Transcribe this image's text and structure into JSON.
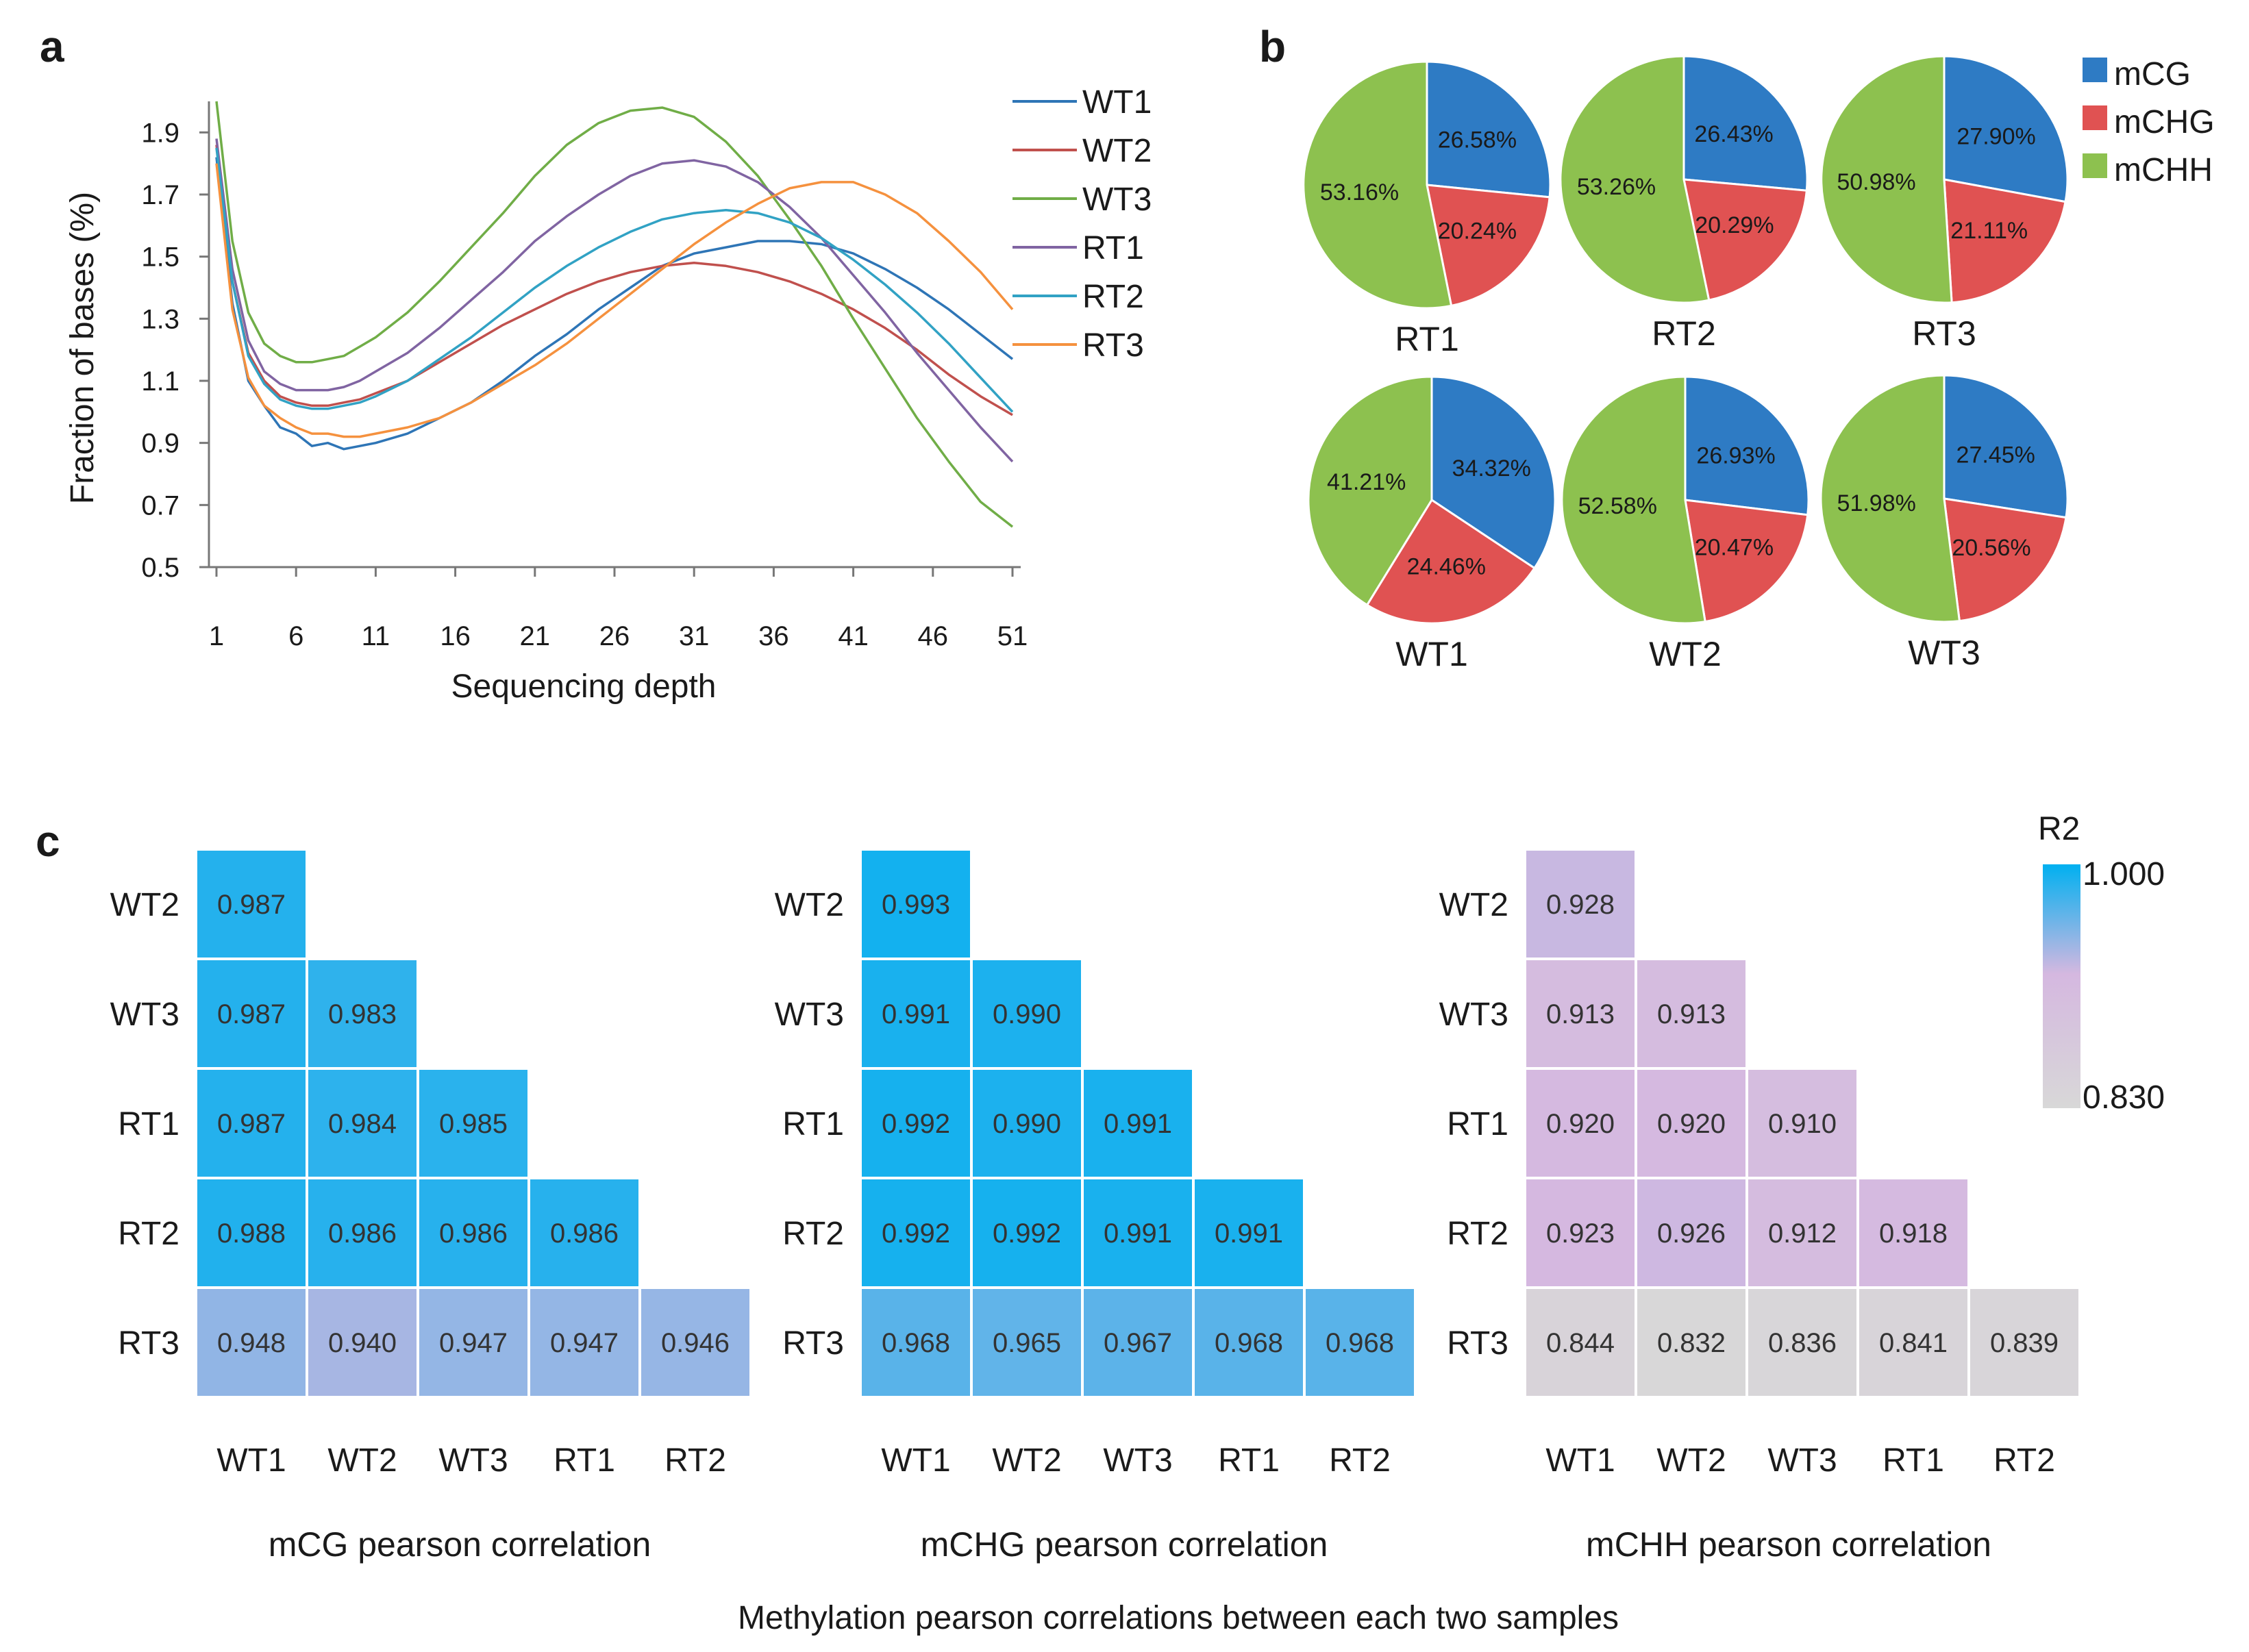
{
  "panel_labels": {
    "a": "a",
    "b": "b",
    "c": "c"
  },
  "colors": {
    "WT1": "#2e75b6",
    "WT2": "#c0504d",
    "WT3": "#70ad47",
    "RT1": "#8064a2",
    "RT2": "#31a2c4",
    "RT3": "#f5913e",
    "mCG": "#2e7bc4",
    "mCHG": "#e05252",
    "mCHH": "#8dc14f",
    "heat_high": "#00b0f0",
    "heat_mid": "#d5b8e0",
    "heat_low": "#d8d8d8"
  },
  "chart_data": [
    {
      "type": "line",
      "panel": "a",
      "xlabel": "Sequencing depth",
      "ylabel": "Fraction of bases (%)",
      "xlim": [
        1,
        51
      ],
      "ylim": [
        0.5,
        2.0
      ],
      "x_ticks": [
        "1",
        "6",
        "11",
        "16",
        "21",
        "26",
        "31",
        "36",
        "41",
        "46",
        "51"
      ],
      "y_ticks": [
        "0.5",
        "0.7",
        "0.9",
        "1.1",
        "1.3",
        "1.5",
        "1.7",
        "1.9"
      ],
      "x": [
        1,
        2,
        3,
        4,
        5,
        6,
        7,
        8,
        9,
        10,
        11,
        13,
        15,
        17,
        19,
        21,
        23,
        25,
        27,
        29,
        31,
        33,
        35,
        37,
        39,
        41,
        43,
        45,
        47,
        49,
        51
      ],
      "series": [
        {
          "name": "WT1",
          "values": [
            1.82,
            1.35,
            1.1,
            1.02,
            0.95,
            0.93,
            0.89,
            0.9,
            0.88,
            0.89,
            0.9,
            0.93,
            0.98,
            1.03,
            1.1,
            1.18,
            1.25,
            1.33,
            1.4,
            1.47,
            1.51,
            1.53,
            1.55,
            1.55,
            1.54,
            1.51,
            1.46,
            1.4,
            1.33,
            1.25,
            1.17
          ]
        },
        {
          "name": "WT2",
          "values": [
            1.86,
            1.42,
            1.19,
            1.1,
            1.05,
            1.03,
            1.02,
            1.02,
            1.03,
            1.04,
            1.06,
            1.1,
            1.16,
            1.22,
            1.28,
            1.33,
            1.38,
            1.42,
            1.45,
            1.47,
            1.48,
            1.47,
            1.45,
            1.42,
            1.38,
            1.33,
            1.27,
            1.2,
            1.12,
            1.05,
            0.99
          ]
        },
        {
          "name": "WT3",
          "values": [
            2.0,
            1.55,
            1.32,
            1.22,
            1.18,
            1.16,
            1.16,
            1.17,
            1.18,
            1.21,
            1.24,
            1.32,
            1.42,
            1.53,
            1.64,
            1.76,
            1.86,
            1.93,
            1.97,
            1.98,
            1.95,
            1.87,
            1.76,
            1.62,
            1.47,
            1.3,
            1.14,
            0.98,
            0.84,
            0.71,
            0.63
          ]
        },
        {
          "name": "RT1",
          "values": [
            1.88,
            1.46,
            1.23,
            1.13,
            1.09,
            1.07,
            1.07,
            1.07,
            1.08,
            1.1,
            1.13,
            1.19,
            1.27,
            1.36,
            1.45,
            1.55,
            1.63,
            1.7,
            1.76,
            1.8,
            1.81,
            1.79,
            1.74,
            1.66,
            1.56,
            1.44,
            1.32,
            1.19,
            1.07,
            0.95,
            0.84
          ]
        },
        {
          "name": "RT2",
          "values": [
            1.85,
            1.42,
            1.18,
            1.09,
            1.04,
            1.02,
            1.01,
            1.01,
            1.02,
            1.03,
            1.05,
            1.1,
            1.17,
            1.24,
            1.32,
            1.4,
            1.47,
            1.53,
            1.58,
            1.62,
            1.64,
            1.65,
            1.64,
            1.61,
            1.56,
            1.49,
            1.41,
            1.32,
            1.22,
            1.11,
            1.0
          ]
        },
        {
          "name": "RT3",
          "values": [
            1.8,
            1.33,
            1.11,
            1.02,
            0.98,
            0.95,
            0.93,
            0.93,
            0.92,
            0.92,
            0.93,
            0.95,
            0.98,
            1.03,
            1.09,
            1.15,
            1.22,
            1.3,
            1.38,
            1.46,
            1.54,
            1.61,
            1.67,
            1.72,
            1.74,
            1.74,
            1.7,
            1.64,
            1.55,
            1.45,
            1.33
          ]
        }
      ]
    },
    {
      "type": "pie",
      "panel": "b",
      "legend": [
        "mCG",
        "mCHG",
        "mCHH"
      ],
      "pies": [
        {
          "name": "RT1",
          "mCG": "26.58%",
          "mCHG": "20.24%",
          "mCHH": "53.16%",
          "values": [
            26.58,
            20.24,
            53.16
          ]
        },
        {
          "name": "RT2",
          "mCG": "26.43%",
          "mCHG": "20.29%",
          "mCHH": "53.26%",
          "values": [
            26.43,
            20.29,
            53.26
          ]
        },
        {
          "name": "RT3",
          "mCG": "27.90%",
          "mCHG": "21.11%",
          "mCHH": "50.98%",
          "values": [
            27.9,
            21.11,
            50.98
          ]
        },
        {
          "name": "WT1",
          "mCG": "34.32%",
          "mCHG": "24.46%",
          "mCHH": "41.21%",
          "values": [
            34.32,
            24.46,
            41.21
          ]
        },
        {
          "name": "WT2",
          "mCG": "26.93%",
          "mCHG": "20.47%",
          "mCHH": "52.58%",
          "values": [
            26.93,
            20.47,
            52.58
          ]
        },
        {
          "name": "WT3",
          "mCG": "27.45%",
          "mCHG": "20.56%",
          "mCHH": "51.98%",
          "values": [
            27.45,
            20.56,
            51.98
          ]
        }
      ]
    },
    {
      "type": "heatmap",
      "panel": "c",
      "caption": "Methylation pearson correlations between each two samples",
      "rows": [
        "WT2",
        "WT3",
        "RT1",
        "RT2",
        "RT3"
      ],
      "cols": [
        "WT1",
        "WT2",
        "WT3",
        "RT1",
        "RT2"
      ],
      "colorbar": {
        "title": "R2",
        "max": "1.000",
        "min": "0.830",
        "range": [
          0.83,
          1.0
        ]
      },
      "matrices": [
        {
          "title": "mCG pearson correlation",
          "values": [
            [
              "0.987"
            ],
            [
              "0.987",
              "0.983"
            ],
            [
              "0.987",
              "0.984",
              "0.985"
            ],
            [
              "0.988",
              "0.986",
              "0.986",
              "0.986"
            ],
            [
              "0.948",
              "0.940",
              "0.947",
              "0.947",
              "0.946"
            ]
          ]
        },
        {
          "title": "mCHG pearson correlation",
          "values": [
            [
              "0.993"
            ],
            [
              "0.991",
              "0.990"
            ],
            [
              "0.992",
              "0.990",
              "0.991"
            ],
            [
              "0.992",
              "0.992",
              "0.991",
              "0.991"
            ],
            [
              "0.968",
              "0.965",
              "0.967",
              "0.968",
              "0.968"
            ]
          ]
        },
        {
          "title": "mCHH pearson correlation",
          "values": [
            [
              "0.928"
            ],
            [
              "0.913",
              "0.913"
            ],
            [
              "0.920",
              "0.920",
              "0.910"
            ],
            [
              "0.923",
              "0.926",
              "0.912",
              "0.918"
            ],
            [
              "0.844",
              "0.832",
              "0.836",
              "0.841",
              "0.839"
            ]
          ]
        }
      ]
    }
  ]
}
